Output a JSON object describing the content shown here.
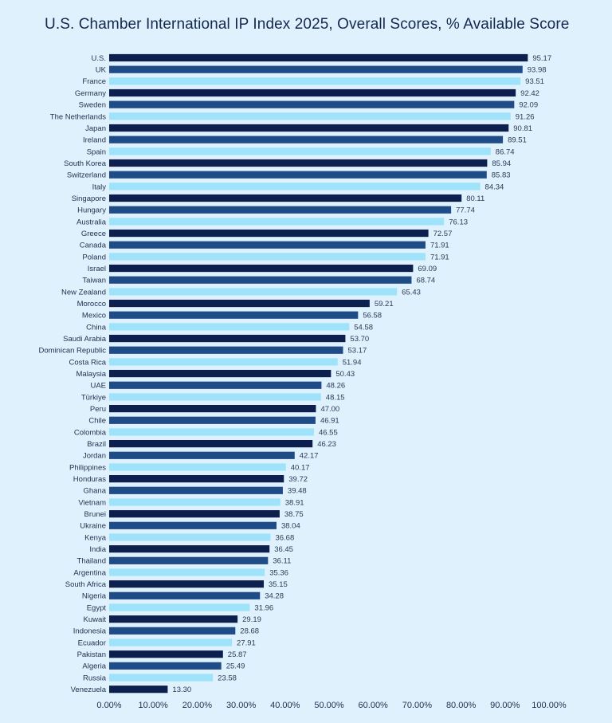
{
  "title": "U.S. Chamber International IP Index 2025, Overall Scores, % Available Score",
  "colors": {
    "background": "#dff1fd",
    "navy": "#0d1f4c",
    "blue": "#1f4b87",
    "light_blue": "#9fe3fb"
  },
  "chart_data": {
    "type": "bar",
    "orientation": "horizontal",
    "title": "U.S. Chamber International IP Index 2025, Overall Scores, % Available Score",
    "xlabel": "",
    "ylabel": "",
    "xlim": [
      0,
      100
    ],
    "grid": false,
    "legend": "none",
    "color_cycle": [
      "#0d1f4c",
      "#1f4b87",
      "#9fe3fb"
    ],
    "categories": [
      "U.S.",
      "UK",
      "France",
      "Germany",
      "Sweden",
      "The Netherlands",
      "Japan",
      "Ireland",
      "Spain",
      "South Korea",
      "Switzerland",
      "Italy",
      "Singapore",
      "Hungary",
      "Australia",
      "Greece",
      "Canada",
      "Poland",
      "Israel",
      "Taiwan",
      "New Zealand",
      "Morocco",
      "Mexico",
      "China",
      "Saudi Arabia",
      "Dominican Republic",
      "Costa Rica",
      "Malaysia",
      "UAE",
      "Türkiye",
      "Peru",
      "Chile",
      "Colombia",
      "Brazil",
      "Jordan",
      "Philippines",
      "Honduras",
      "Ghana",
      "Vietnam",
      "Brunei",
      "Ukraine",
      "Kenya",
      "India",
      "Thailand",
      "Argentina",
      "South Africa",
      "Nigeria",
      "Egypt",
      "Kuwait",
      "Indonesia",
      "Ecuador",
      "Pakistan",
      "Algeria",
      "Russia",
      "Venezuela"
    ],
    "values": [
      95.17,
      93.98,
      93.51,
      92.42,
      92.09,
      91.26,
      90.81,
      89.51,
      86.74,
      85.94,
      85.83,
      84.34,
      80.11,
      77.74,
      76.13,
      72.57,
      71.91,
      71.91,
      69.09,
      68.74,
      65.43,
      59.21,
      56.58,
      54.58,
      53.7,
      53.17,
      51.94,
      50.43,
      48.26,
      48.15,
      47.0,
      46.91,
      46.55,
      46.23,
      42.17,
      40.17,
      39.72,
      39.48,
      38.91,
      38.75,
      38.04,
      36.68,
      36.45,
      36.11,
      35.36,
      35.15,
      34.28,
      31.96,
      29.19,
      28.68,
      27.91,
      25.87,
      25.49,
      23.58,
      13.3
    ],
    "value_labels": [
      "95.17",
      "93.98",
      "93.51",
      "92.42",
      "92.09",
      "91.26",
      "90.81",
      "89.51",
      "86.74",
      "85.94",
      "85.83",
      "84.34",
      "80.11",
      "77.74",
      "76.13",
      "72.57",
      "71.91",
      "71.91",
      "69.09",
      "68.74",
      "65.43",
      "59.21",
      "56.58",
      "54.58",
      "53.70",
      "53.17",
      "51.94",
      "50.43",
      "48.26",
      "48.15",
      "47.00",
      "46.91",
      "46.55",
      "46.23",
      "42.17",
      "40.17",
      "39.72",
      "39.48",
      "38.91",
      "38.75",
      "38.04",
      "36.68",
      "36.45",
      "36.11",
      "35.36",
      "35.15",
      "34.28",
      "31.96",
      "29.19",
      "28.68",
      "27.91",
      "25.87",
      "25.49",
      "23.58",
      "13.30"
    ],
    "x_ticks": [
      0,
      10,
      20,
      30,
      40,
      50,
      60,
      70,
      80,
      90,
      100
    ],
    "x_tick_labels": [
      "0.00%",
      "10.00%",
      "20.00%",
      "30.00%",
      "40.00%",
      "50.00%",
      "60.00%",
      "70.00%",
      "80.00%",
      "90.00%",
      "100.00%"
    ]
  }
}
